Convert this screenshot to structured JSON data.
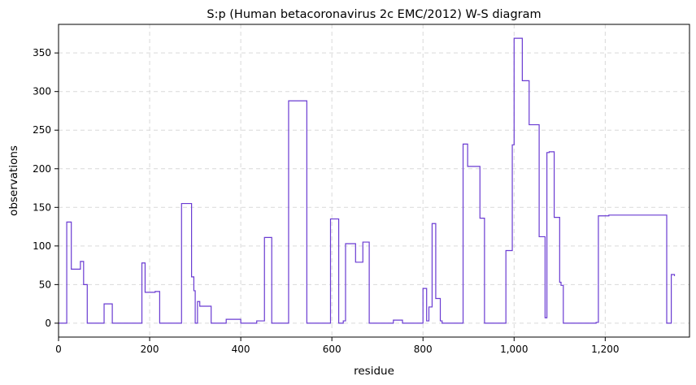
{
  "chart_data": {
    "type": "line",
    "title": "S:p (Human betacoronavirus 2c EMC/2012) W-S diagram",
    "xlabel": "residue",
    "ylabel": "observations",
    "xlim": [
      0,
      1385
    ],
    "ylim": [
      -18,
      387
    ],
    "xticks": [
      0,
      200,
      400,
      600,
      800,
      1000,
      1200
    ],
    "xtick_labels": [
      "0",
      "200",
      "400",
      "600",
      "800",
      "1,000",
      "1,200"
    ],
    "yticks": [
      0,
      50,
      100,
      150,
      200,
      250,
      300,
      350
    ],
    "ytick_labels": [
      "0",
      "50",
      "100",
      "150",
      "200",
      "250",
      "300",
      "350"
    ],
    "grid": true,
    "line_color": "#6a3bd2",
    "series": [
      {
        "step": "post",
        "x": [
          0,
          18,
          28,
          48,
          55,
          63,
          100,
          118,
          183,
          190,
          212,
          222,
          270,
          292,
          297,
          300,
          305,
          310,
          320,
          335,
          368,
          400,
          435,
          452,
          468,
          505,
          510,
          545,
          597,
          615,
          625,
          630,
          652,
          668,
          682,
          702,
          735,
          755,
          800,
          808,
          813,
          820,
          828,
          838,
          842,
          848,
          888,
          898,
          925,
          935,
          982,
          996,
          1000,
          1018,
          1033,
          1055,
          1068,
          1072,
          1077,
          1088,
          1100,
          1103,
          1108,
          1160,
          1180,
          1185,
          1208,
          1335,
          1345,
          1352
        ],
        "y": [
          0,
          131,
          70,
          80,
          50,
          0,
          25,
          0,
          78,
          40,
          41,
          0,
          155,
          60,
          42,
          0,
          28,
          22,
          22,
          0,
          5,
          0,
          3,
          111,
          0,
          288,
          288,
          0,
          135,
          0,
          3,
          103,
          79,
          105,
          0,
          0,
          4,
          0,
          45,
          3,
          21,
          129,
          32,
          3,
          0,
          0,
          232,
          203,
          136,
          0,
          94,
          231,
          369,
          314,
          257,
          112,
          7,
          221,
          222,
          137,
          53,
          49,
          0,
          0,
          1,
          139,
          140,
          0,
          63,
          61
        ]
      }
    ]
  }
}
